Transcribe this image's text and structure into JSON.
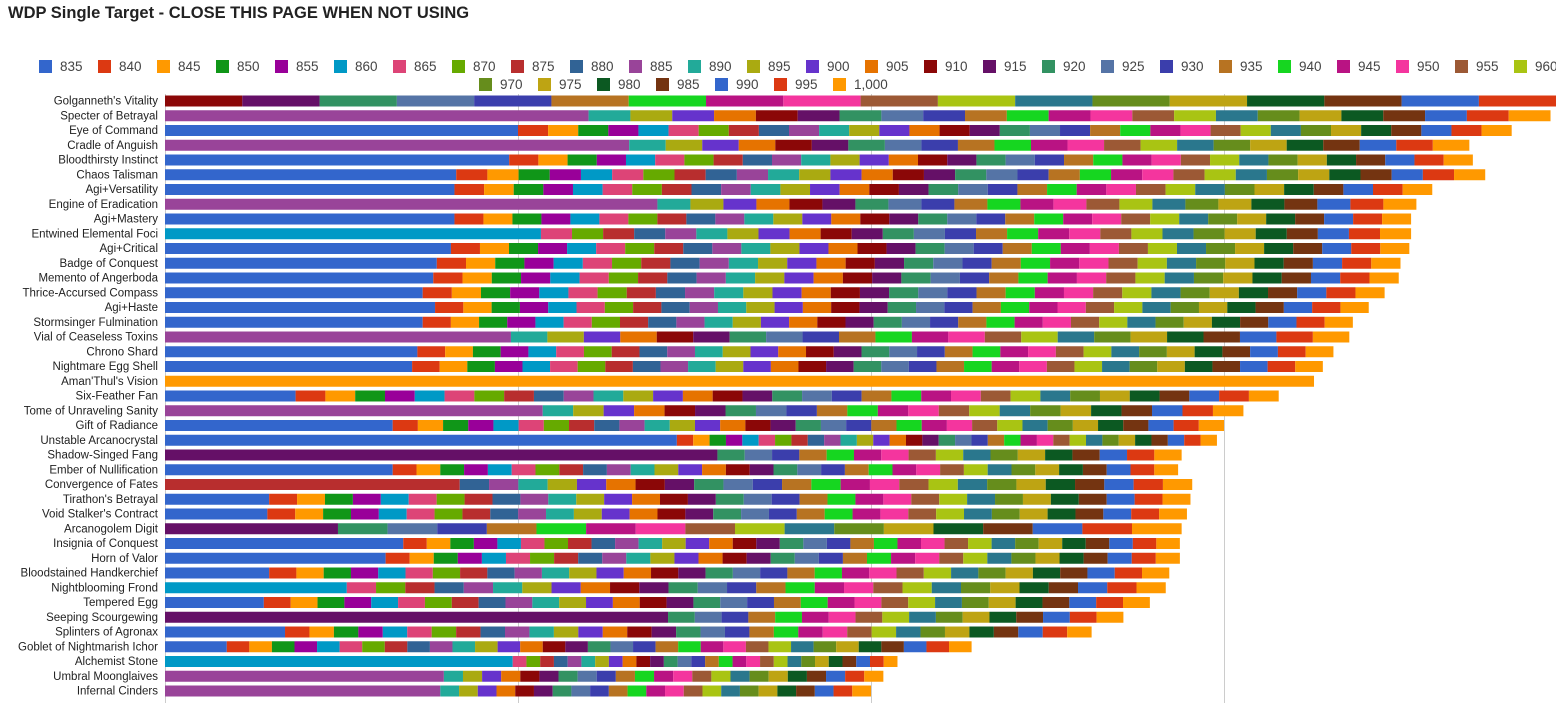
{
  "chart_data": {
    "type": "bar",
    "orientation": "horizontal",
    "stacked": true,
    "title": "WDP Single Target - CLOSE THIS PAGE WHEN NOT USING",
    "legend_position": "top",
    "grid": true,
    "xlim": [
      0,
      4000
    ],
    "series_names": [
      "835",
      "840",
      "845",
      "850",
      "855",
      "860",
      "865",
      "870",
      "875",
      "880",
      "885",
      "890",
      "895",
      "900",
      "905",
      "910",
      "915",
      "920",
      "925",
      "930",
      "935",
      "940",
      "945",
      "950",
      "955",
      "960",
      "965",
      "970",
      "975",
      "980",
      "985",
      "990",
      "995",
      "1,000"
    ],
    "series_colors": [
      "#3366cc",
      "#dc3912",
      "#ff9900",
      "#109618",
      "#990099",
      "#0099c6",
      "#dd4477",
      "#66aa00",
      "#b82e2e",
      "#316395",
      "#994499",
      "#22aa99",
      "#aaaa11",
      "#6633cc",
      "#e67300",
      "#8b0707",
      "#651067",
      "#329262",
      "#5574a6",
      "#3b3eac",
      "#b77322",
      "#16d620",
      "#b91383",
      "#f4359e",
      "#9c5935",
      "#a9c413",
      "#2a778d",
      "#668d1c",
      "#bea413",
      "#0c5922",
      "#743411",
      "#3366cc",
      "#dc3912",
      "#ff9900"
    ],
    "categories": [
      "Golganneth's Vitality",
      "Specter of Betrayal",
      "Eye of Command",
      "Cradle of Anguish",
      "Bloodthirsty Instinct",
      "Chaos Talisman",
      "Agi+Versatility",
      "Engine of Eradication",
      "Agi+Mastery",
      "Entwined Elemental Foci",
      "Agi+Critical",
      "Badge of Conquest",
      "Memento of Angerboda",
      "Thrice-Accursed Compass",
      "Agi+Haste",
      "Stormsinger Fulmination",
      "Vial of Ceaseless Toxins",
      "Chrono Shard",
      "Nightmare Egg Shell",
      "Aman'Thul's Vision",
      "Six-Feather Fan",
      "Tome of Unraveling Sanity",
      "Gift of Radiance",
      "Unstable Arcanocrystal",
      "Shadow-Singed Fang",
      "Ember of Nullification",
      "Convergence of Fates",
      "Tirathon's Betrayal",
      "Void Stalker's Contract",
      "Arcanogolem Digit",
      "Insignia of Conquest",
      "Horn of Valor",
      "Bloodstained Handkerchief",
      "Nightblooming Frond",
      "Tempered Egg",
      "Seeping Scourgewing",
      "Splinters of Agronax",
      "Goblet of Nightmarish Ichor",
      "Alchemist Stone",
      "Umbral Moonglaives",
      "Infernal Cinders"
    ],
    "rows": [
      {
        "first_series": 14,
        "start": 0,
        "total": 4160
      },
      {
        "first_series": 10,
        "start": 1200,
        "total": 3925
      },
      {
        "first_series": 0,
        "start": 1000,
        "total": 3815
      },
      {
        "first_series": 10,
        "start": 1315,
        "total": 3695
      },
      {
        "first_series": 0,
        "start": 975,
        "total": 3705
      },
      {
        "first_series": 0,
        "start": 825,
        "total": 3740
      },
      {
        "first_series": 0,
        "start": 820,
        "total": 3590
      },
      {
        "first_series": 10,
        "start": 1395,
        "total": 3545
      },
      {
        "first_series": 0,
        "start": 820,
        "total": 3530
      },
      {
        "first_series": 5,
        "start": 1065,
        "total": 3530
      },
      {
        "first_series": 0,
        "start": 810,
        "total": 3525
      },
      {
        "first_series": 0,
        "start": 770,
        "total": 3500
      },
      {
        "first_series": 0,
        "start": 760,
        "total": 3495
      },
      {
        "first_series": 0,
        "start": 730,
        "total": 3455
      },
      {
        "first_series": 0,
        "start": 765,
        "total": 3410
      },
      {
        "first_series": 0,
        "start": 730,
        "total": 3365
      },
      {
        "first_series": 10,
        "start": 980,
        "total": 3355
      },
      {
        "first_series": 0,
        "start": 715,
        "total": 3310
      },
      {
        "first_series": 0,
        "start": 700,
        "total": 3280
      },
      {
        "first_series": 33,
        "start": 3255,
        "total": 3255
      },
      {
        "first_series": 0,
        "start": 370,
        "total": 3155
      },
      {
        "first_series": 10,
        "start": 1070,
        "total": 3055
      },
      {
        "first_series": 0,
        "start": 645,
        "total": 3000
      },
      {
        "first_series": 0,
        "start": 1450,
        "total": 2980
      },
      {
        "first_series": 16,
        "start": 1565,
        "total": 2880
      },
      {
        "first_series": 0,
        "start": 645,
        "total": 2870
      },
      {
        "first_series": 8,
        "start": 835,
        "total": 2910
      },
      {
        "first_series": 0,
        "start": 295,
        "total": 2905
      },
      {
        "first_series": 0,
        "start": 290,
        "total": 2895
      },
      {
        "first_series": 16,
        "start": 490,
        "total": 2880
      },
      {
        "first_series": 0,
        "start": 675,
        "total": 2875
      },
      {
        "first_series": 0,
        "start": 625,
        "total": 2875
      },
      {
        "first_series": 0,
        "start": 295,
        "total": 2845
      },
      {
        "first_series": 5,
        "start": 515,
        "total": 2835
      },
      {
        "first_series": 0,
        "start": 280,
        "total": 2790
      },
      {
        "first_series": 16,
        "start": 1425,
        "total": 2715
      },
      {
        "first_series": 0,
        "start": 340,
        "total": 2625
      },
      {
        "first_series": 0,
        "start": 175,
        "total": 2285
      },
      {
        "first_series": 5,
        "start": 985,
        "total": 2075
      },
      {
        "first_series": 10,
        "start": 790,
        "total": 2035
      },
      {
        "first_series": 10,
        "start": 780,
        "total": 2000
      }
    ]
  }
}
